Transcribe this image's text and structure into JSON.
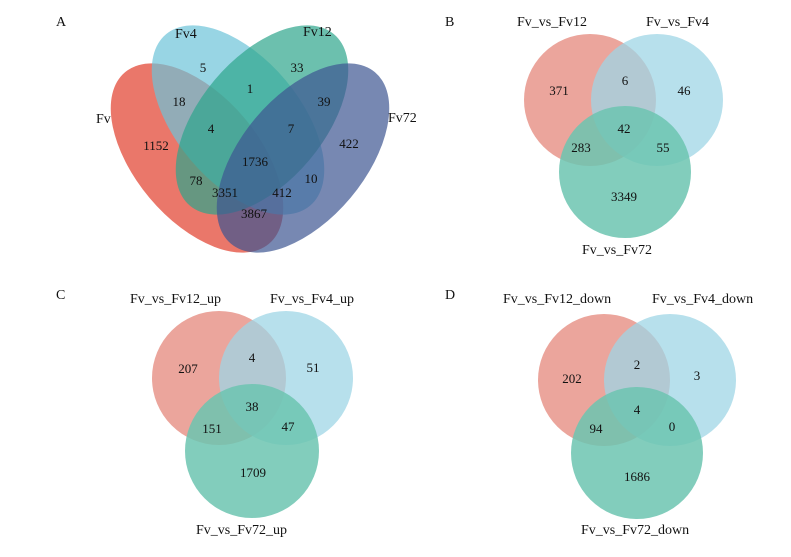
{
  "panels": {
    "A": {
      "letter": "A",
      "sets": [
        "Fv",
        "Fv4",
        "Fv12",
        "Fv72"
      ],
      "counts": {
        "fv4_only": "5",
        "fv12_only": "33",
        "fv4_fv12": "1",
        "fv_fv4": "18",
        "fv12_fv72": "39",
        "fv_fv4_fv12": "4",
        "fv4_fv12_fv72": "7",
        "fv72_only": "422",
        "fv_only": "1152",
        "all": "1736",
        "fv4_fv72": "10",
        "fv_fv12": "78",
        "fv_fv12_fv72": "3351",
        "fv_fv4_fv72": "412",
        "fv_fv72": "3867"
      }
    },
    "B": {
      "letter": "B",
      "sets": [
        "Fv_vs_Fv12",
        "Fv_vs_Fv4",
        "Fv_vs_Fv72"
      ],
      "counts": {
        "a_only": "371",
        "ab": "6",
        "b_only": "46",
        "abc": "42",
        "ac": "283",
        "bc": "55",
        "c_only": "3349"
      }
    },
    "C": {
      "letter": "C",
      "sets": [
        "Fv_vs_Fv12_up",
        "Fv_vs_Fv4_up",
        "Fv_vs_Fv72_up"
      ],
      "counts": {
        "a_only": "207",
        "ab": "4",
        "b_only": "51",
        "abc": "38",
        "ac": "151",
        "bc": "47",
        "c_only": "1709"
      }
    },
    "D": {
      "letter": "D",
      "sets": [
        "Fv_vs_Fv12_down",
        "Fv_vs_Fv4_down",
        "Fv_vs_Fv72_down"
      ],
      "counts": {
        "a_only": "202",
        "ab": "2",
        "b_only": "3",
        "abc": "4",
        "ac": "94",
        "bc": "0",
        "c_only": "1686"
      }
    }
  },
  "colors": {
    "red": "#e8685a",
    "cyan": "#6cc3d8",
    "green": "#2ea58c",
    "navy": "#3d5591",
    "venn3_red": "#e8958b",
    "venn3_blue": "#9fd6e6",
    "venn3_green": "#6cc4b0"
  }
}
